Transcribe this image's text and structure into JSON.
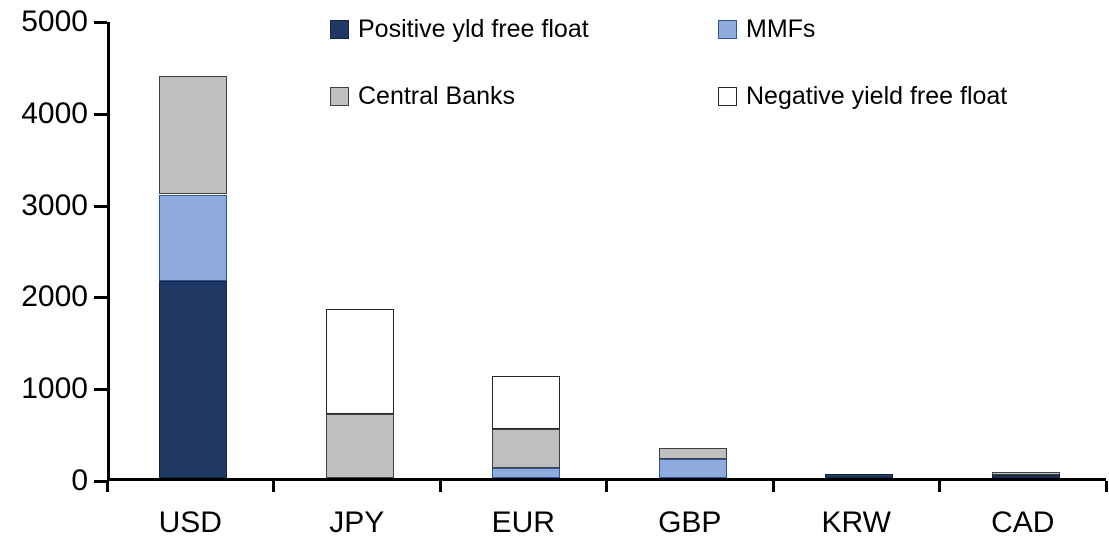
{
  "chart_data": {
    "type": "bar",
    "subtype": "stacked-vertical",
    "title": "",
    "xlabel": "",
    "ylabel": "",
    "categories": [
      "USD",
      "JPY",
      "EUR",
      "GBP",
      "KRW",
      "CAD"
    ],
    "series": [
      {
        "name": "Positive yld free float",
        "color": "#1F3864",
        "border_color": "#17263F",
        "values": [
          2150,
          0,
          0,
          0,
          45,
          30
        ]
      },
      {
        "name": "MMFs",
        "color": "#8FAADC",
        "border_color": "#2F5597",
        "values": [
          940,
          0,
          110,
          210,
          0,
          0
        ]
      },
      {
        "name": "Central Banks",
        "color": "#BFBFBF",
        "border_color": "#404040",
        "values": [
          1290,
          700,
          425,
          125,
          0,
          30
        ]
      },
      {
        "name": "Negative yield free float",
        "color": "#FFFFFF",
        "border_color": "#262626",
        "values": [
          0,
          1140,
          575,
          0,
          0,
          0
        ]
      }
    ],
    "stack_totals": [
      4380,
      1840,
      1110,
      335,
      45,
      60
    ],
    "ylim": [
      0,
      5000
    ],
    "yticks": [
      0,
      1000,
      2000,
      3000,
      4000,
      5000
    ],
    "grid": false,
    "legend_position": "top",
    "axis_color": "#000000",
    "background_color": "#FFFFFF"
  }
}
